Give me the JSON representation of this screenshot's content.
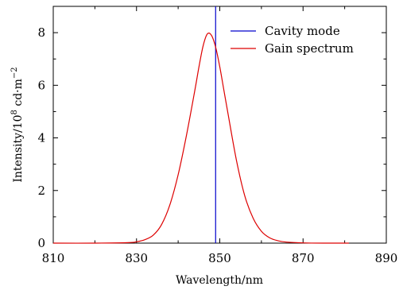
{
  "chart_data": {
    "type": "line",
    "title": "",
    "xlabel": "Wavelength/nm",
    "ylabel": {
      "base": "Intensity/10",
      "base_exp": "8",
      "unit": " cd·m",
      "unit_exp": "−2"
    },
    "xlim": [
      810,
      890
    ],
    "ylim": [
      0,
      9
    ],
    "x_ticks": [
      "810",
      "830",
      "850",
      "870",
      "890"
    ],
    "y_ticks": [
      "0",
      "2",
      "4",
      "6",
      "8"
    ],
    "grid": false,
    "legend_position": "top-right",
    "series": [
      {
        "name": "Cavity mode",
        "color": "#0000cc",
        "kind": "vertical-line",
        "x": [
          849,
          849
        ],
        "y": [
          0,
          9
        ]
      },
      {
        "name": "Gain spectrum",
        "color": "#dd0000",
        "kind": "curve",
        "x": [
          810,
          820,
          828,
          830,
          832,
          834,
          836,
          838,
          840,
          842,
          844,
          845,
          846,
          847,
          848,
          849,
          850,
          851,
          852,
          854,
          856,
          858,
          860,
          862,
          864,
          866,
          870,
          875,
          881
        ],
        "y": [
          0.0,
          0.0,
          0.02,
          0.05,
          0.13,
          0.3,
          0.7,
          1.45,
          2.6,
          4.1,
          5.8,
          6.7,
          7.5,
          7.95,
          7.9,
          7.45,
          6.7,
          5.8,
          4.9,
          3.15,
          1.8,
          0.95,
          0.45,
          0.2,
          0.09,
          0.04,
          0.01,
          0.0,
          0.0
        ]
      }
    ]
  }
}
